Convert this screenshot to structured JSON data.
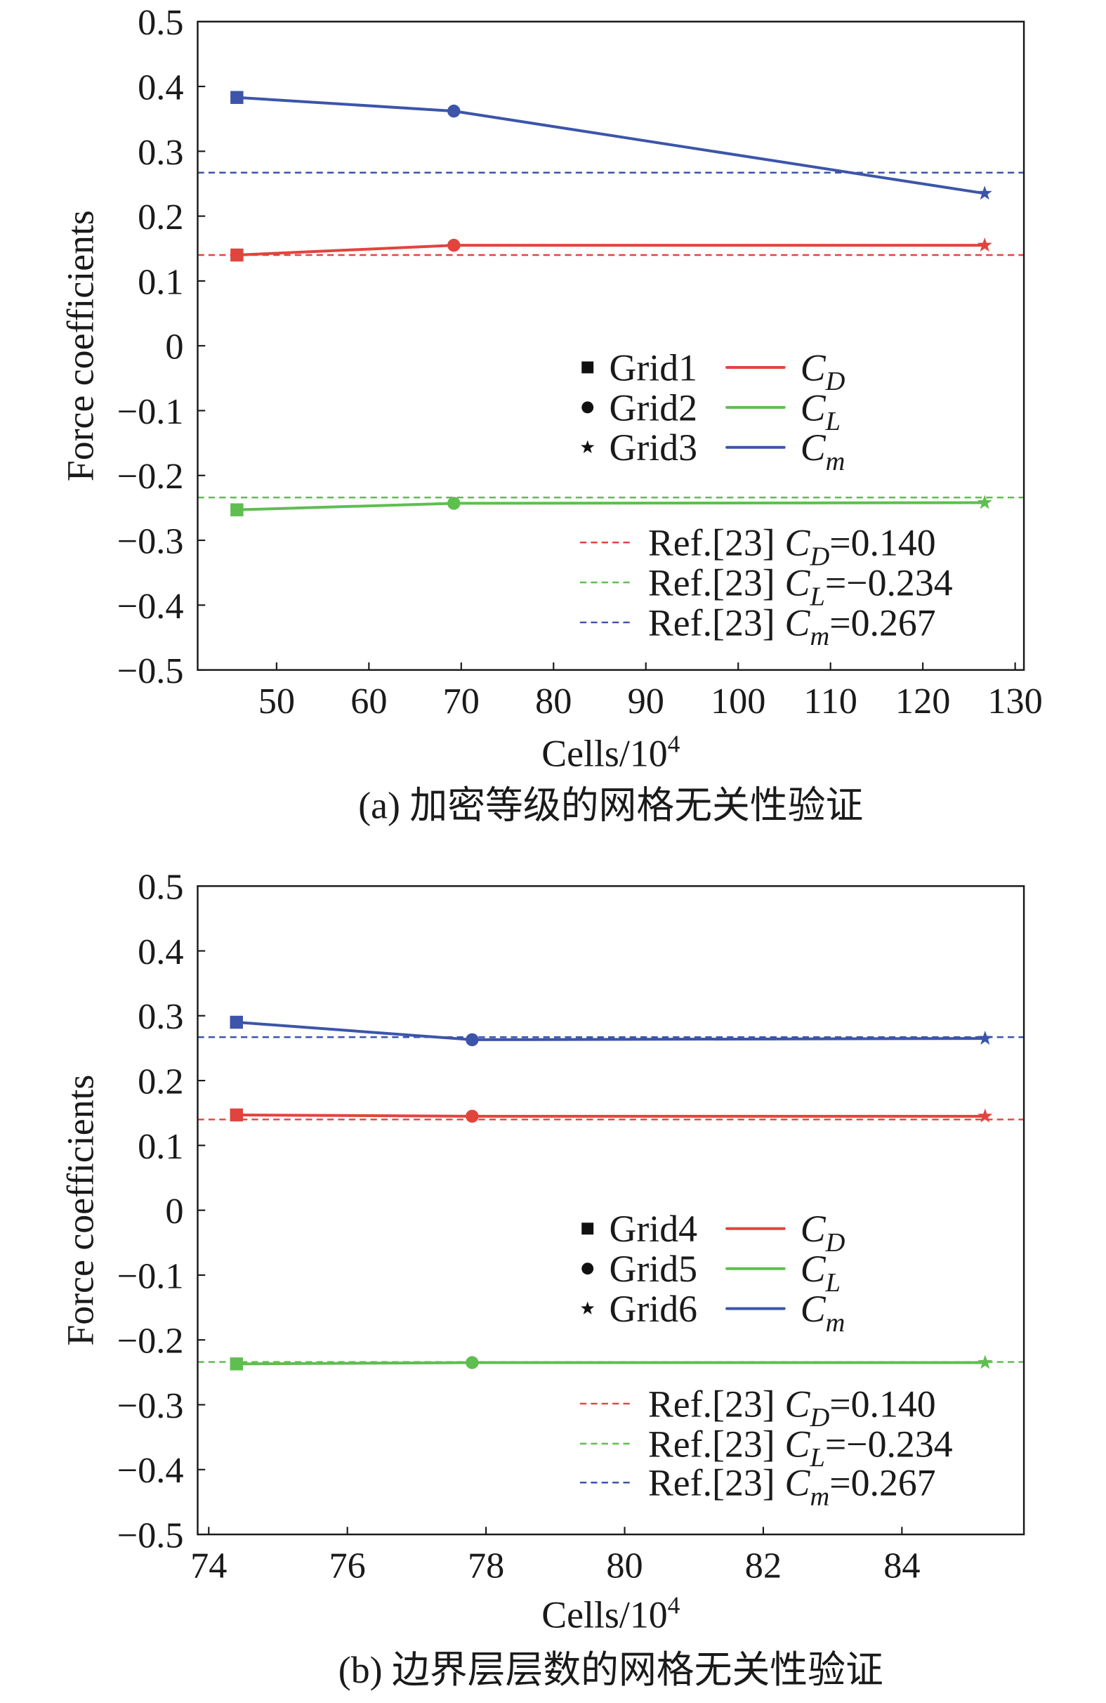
{
  "chart_data": [
    {
      "type": "line",
      "caption": "(a) 加密等级的网格无关性验证",
      "xlabel": "Cells/10",
      "xlabel_exponent": "4",
      "ylabel": "Force coefficients",
      "xlim": [
        41.45,
        130.95
      ],
      "ylim": [
        -0.5,
        0.5
      ],
      "xticks": [
        50,
        60,
        70,
        80,
        90,
        100,
        110,
        120,
        130
      ],
      "xtick_labels": [
        "50",
        "60",
        "70",
        "80",
        "90",
        "100",
        "110",
        "120",
        "130"
      ],
      "yticks": [
        0.5,
        0.4,
        0.3,
        0.2,
        0.1,
        0,
        -0.1,
        -0.2,
        -0.3,
        -0.4,
        -0.5
      ],
      "ytick_labels": [
        "0.5",
        "0.4",
        "0.3",
        "0.2",
        "0.1",
        "0",
        "−0.1",
        "−0.2",
        "−0.3",
        "−0.4",
        "−0.5"
      ],
      "grid": false,
      "legend_position": "right",
      "grids": [
        {
          "label": "Grid1",
          "marker": "square"
        },
        {
          "label": "Grid2",
          "marker": "circle"
        },
        {
          "label": "Grid3",
          "marker": "star"
        }
      ],
      "x": [
        45.7,
        69.2,
        126.7
      ],
      "series": [
        {
          "symbol": "C",
          "subscript": "D",
          "color": "#e1443d",
          "values": [
            0.14,
            0.155,
            0.155
          ]
        },
        {
          "symbol": "C",
          "subscript": "L",
          "color": "#5fbe50",
          "values": [
            -0.253,
            -0.243,
            -0.242
          ]
        },
        {
          "symbol": "C",
          "subscript": "m",
          "color": "#3c55aa",
          "values": [
            0.383,
            0.362,
            0.235
          ]
        }
      ],
      "reference_lines": [
        {
          "prefix": "Ref.[23]",
          "symbol": "C",
          "subscript": "D",
          "suffix": "=0.140",
          "value": 0.14,
          "color": "#e1443d"
        },
        {
          "prefix": "Ref.[23]",
          "symbol": "C",
          "subscript": "L",
          "suffix": "=−0.234",
          "value": -0.234,
          "color": "#5fbe50"
        },
        {
          "prefix": "Ref.[23]",
          "symbol": "C",
          "subscript": "m",
          "suffix": "=0.267",
          "value": 0.267,
          "color": "#3c55aa"
        }
      ]
    },
    {
      "type": "line",
      "caption": "(b) 边界层层数的网格无关性验证",
      "xlabel": "Cells/10",
      "xlabel_exponent": "4",
      "ylabel": "Force coefficients",
      "xlim": [
        73.84,
        85.76
      ],
      "ylim": [
        -0.5,
        0.5
      ],
      "xticks": [
        74,
        76,
        78,
        80,
        82,
        84
      ],
      "xtick_labels": [
        "74",
        "76",
        "78",
        "80",
        "82",
        "84"
      ],
      "yticks": [
        0.5,
        0.4,
        0.3,
        0.2,
        0.1,
        0,
        -0.1,
        -0.2,
        -0.3,
        -0.4,
        -0.5
      ],
      "ytick_labels": [
        "0.5",
        "0.4",
        "0.3",
        "0.2",
        "0.1",
        "0",
        "−0.1",
        "−0.2",
        "−0.3",
        "−0.4",
        "−0.5"
      ],
      "grid": false,
      "legend_position": "right",
      "grids": [
        {
          "label": "Grid4",
          "marker": "square"
        },
        {
          "label": "Grid5",
          "marker": "circle"
        },
        {
          "label": "Grid6",
          "marker": "star"
        }
      ],
      "x": [
        74.4,
        77.8,
        85.2
      ],
      "series": [
        {
          "symbol": "C",
          "subscript": "D",
          "color": "#e1443d",
          "values": [
            0.147,
            0.145,
            0.145
          ]
        },
        {
          "symbol": "C",
          "subscript": "L",
          "color": "#5fbe50",
          "values": [
            -0.237,
            -0.235,
            -0.235
          ]
        },
        {
          "symbol": "C",
          "subscript": "m",
          "color": "#3c55aa",
          "values": [
            0.29,
            0.263,
            0.265
          ]
        }
      ],
      "reference_lines": [
        {
          "prefix": "Ref.[23]",
          "symbol": "C",
          "subscript": "D",
          "suffix": "=0.140",
          "value": 0.14,
          "color": "#e1443d"
        },
        {
          "prefix": "Ref.[23]",
          "symbol": "C",
          "subscript": "L",
          "suffix": "=−0.234",
          "value": -0.234,
          "color": "#5fbe50"
        },
        {
          "prefix": "Ref.[23]",
          "symbol": "C",
          "subscript": "m",
          "suffix": "=0.267",
          "value": 0.267,
          "color": "#3c55aa"
        }
      ]
    }
  ]
}
